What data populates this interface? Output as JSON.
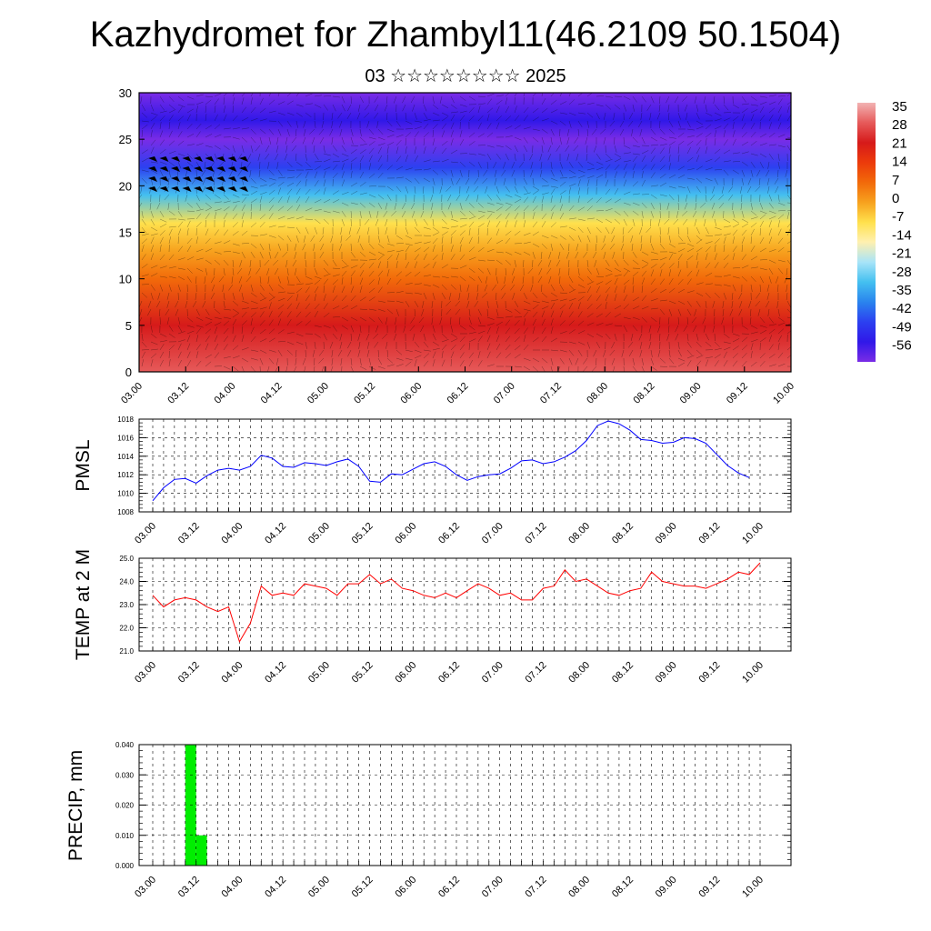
{
  "title": "Kazhydromet for Zhambyl11(46.2109 50.1504)",
  "subtitle": "03 ☆☆☆☆☆☆☆☆ 2025",
  "time_ticks": [
    "03.00",
    "03.12",
    "04.00",
    "04.12",
    "05.00",
    "05.12",
    "06.00",
    "06.12",
    "07.00",
    "07.12",
    "08.00",
    "08.12",
    "09.00",
    "09.12",
    "10.00"
  ],
  "colors": {
    "pmsl_line": "#0000ff",
    "temp_line": "#ff0000",
    "precip_bar": "#00ee00",
    "grid": "#000000"
  },
  "chart_data": [
    {
      "type": "heatmap",
      "description_key": "cross-section",
      "ylim": [
        0,
        30
      ],
      "y_ticks": [
        0,
        5,
        10,
        15,
        20,
        25,
        30
      ],
      "x_ticks": [
        "03.00",
        "03.12",
        "04.00",
        "04.12",
        "05.00",
        "05.12",
        "06.00",
        "06.12",
        "07.00",
        "07.12",
        "08.00",
        "08.12",
        "09.00",
        "09.12",
        "10.00"
      ],
      "colorbar": {
        "labels": [
          "35",
          "28",
          "21",
          "14",
          "7",
          "0",
          "-7",
          "-14",
          "-21",
          "-28",
          "-35",
          "-42",
          "-49",
          "-56"
        ],
        "colors": [
          "#f2b3b3",
          "#e65a5a",
          "#d61a1a",
          "#ec3b0b",
          "#f26a0a",
          "#f7a21e",
          "#ffe14d",
          "#fff0b0",
          "#a8e4f8",
          "#44c0f0",
          "#2a84ee",
          "#2c40f0",
          "#3018e8",
          "#7a2ce6"
        ]
      },
      "field_profile": [
        {
          "level": 0,
          "value": 25
        },
        {
          "level": 5,
          "value": 21
        },
        {
          "level": 10,
          "value": 10
        },
        {
          "level": 13,
          "value": 1
        },
        {
          "level": 16,
          "value": -10
        },
        {
          "level": 19,
          "value": -28
        },
        {
          "level": 22,
          "value": -40
        },
        {
          "level": 25,
          "value": -56
        },
        {
          "level": 27,
          "value": -50
        },
        {
          "level": 30,
          "value": -58
        }
      ]
    },
    {
      "type": "line",
      "ylabel": "PMSL",
      "ylim": [
        1008,
        1018
      ],
      "y_ticks": [
        "1008",
        "1010",
        "1012",
        "1014",
        "1016",
        "1018"
      ],
      "x_ticks": [
        "03.00",
        "03.12",
        "04.00",
        "04.12",
        "05.00",
        "05.12",
        "06.00",
        "06.12",
        "07.00",
        "07.12",
        "08.00",
        "08.12",
        "09.00",
        "09.12",
        "10.00"
      ],
      "x_hours": [
        0,
        3,
        6,
        9,
        12,
        15,
        18,
        21,
        24,
        27,
        30,
        33,
        36,
        39,
        42,
        45,
        48,
        51,
        54,
        57,
        60,
        63,
        66,
        69,
        72,
        75,
        78,
        81,
        84,
        87,
        90,
        93,
        96,
        99,
        102,
        105,
        108,
        111,
        114,
        117,
        120,
        123,
        126,
        129,
        132,
        135,
        138,
        141,
        144,
        147,
        150,
        153,
        156,
        159,
        162,
        165
      ],
      "values": [
        1009.2,
        1010.6,
        1011.5,
        1011.6,
        1011.1,
        1011.9,
        1012.5,
        1012.7,
        1012.5,
        1012.9,
        1014.1,
        1013.8,
        1012.9,
        1012.8,
        1013.3,
        1013.2,
        1013.0,
        1013.4,
        1013.7,
        1012.9,
        1011.3,
        1011.2,
        1012.1,
        1012.0,
        1012.6,
        1013.2,
        1013.4,
        1012.9,
        1012.0,
        1011.4,
        1011.8,
        1012.0,
        1012.1,
        1012.7,
        1013.5,
        1013.6,
        1013.2,
        1013.4,
        1013.9,
        1014.6,
        1015.7,
        1017.3,
        1017.8,
        1017.5,
        1016.8,
        1015.8,
        1015.7,
        1015.4,
        1015.5,
        1016.0,
        1015.9,
        1015.4,
        1014.2,
        1013.0,
        1012.2,
        1011.7
      ]
    },
    {
      "type": "line",
      "ylabel": "TEMP at 2 M",
      "ylim": [
        21.0,
        25.0
      ],
      "y_ticks": [
        "21.0",
        "22.0",
        "23.0",
        "24.0",
        "25.0"
      ],
      "x_ticks": [
        "03.00",
        "03.12",
        "04.00",
        "04.12",
        "05.00",
        "05.12",
        "06.00",
        "06.12",
        "07.00",
        "07.12",
        "08.00",
        "08.12",
        "09.00",
        "09.12",
        "10.00"
      ],
      "x_hours": [
        0,
        3,
        6,
        9,
        12,
        15,
        18,
        21,
        24,
        27,
        30,
        33,
        36,
        39,
        42,
        45,
        48,
        51,
        54,
        57,
        60,
        63,
        66,
        69,
        72,
        75,
        78,
        81,
        84,
        87,
        90,
        93,
        96,
        99,
        102,
        105,
        108,
        111,
        114,
        117,
        120,
        123,
        126,
        129,
        132,
        135,
        138,
        141,
        144,
        147,
        150,
        153,
        156,
        159,
        162,
        165,
        168
      ],
      "values": [
        23.4,
        22.9,
        23.2,
        23.3,
        23.2,
        22.9,
        22.7,
        22.9,
        21.4,
        22.2,
        23.8,
        23.4,
        23.5,
        23.4,
        23.9,
        23.8,
        23.7,
        23.4,
        23.9,
        23.9,
        24.3,
        23.9,
        24.1,
        23.7,
        23.6,
        23.4,
        23.3,
        23.5,
        23.3,
        23.6,
        23.9,
        23.7,
        23.4,
        23.5,
        23.2,
        23.2,
        23.7,
        23.8,
        24.5,
        24.0,
        24.1,
        23.8,
        23.5,
        23.4,
        23.6,
        23.7,
        24.4,
        24.0,
        23.9,
        23.8,
        23.8,
        23.7,
        23.9,
        24.1,
        24.4,
        24.3,
        24.8
      ]
    },
    {
      "type": "bar",
      "ylabel": "PRECIP, mm",
      "ylim": [
        0.0,
        0.04
      ],
      "y_ticks": [
        "0.000",
        "0.010",
        "0.020",
        "0.030",
        "0.040"
      ],
      "x_ticks": [
        "03.00",
        "03.12",
        "04.00",
        "04.12",
        "05.00",
        "05.12",
        "06.00",
        "06.12",
        "07.00",
        "07.12",
        "08.00",
        "08.12",
        "09.00",
        "09.12",
        "10.00"
      ],
      "bars": [
        {
          "start_hour": 9,
          "end_hour": 12,
          "value": 0.04
        },
        {
          "start_hour": 12,
          "end_hour": 15,
          "value": 0.01
        }
      ]
    }
  ]
}
